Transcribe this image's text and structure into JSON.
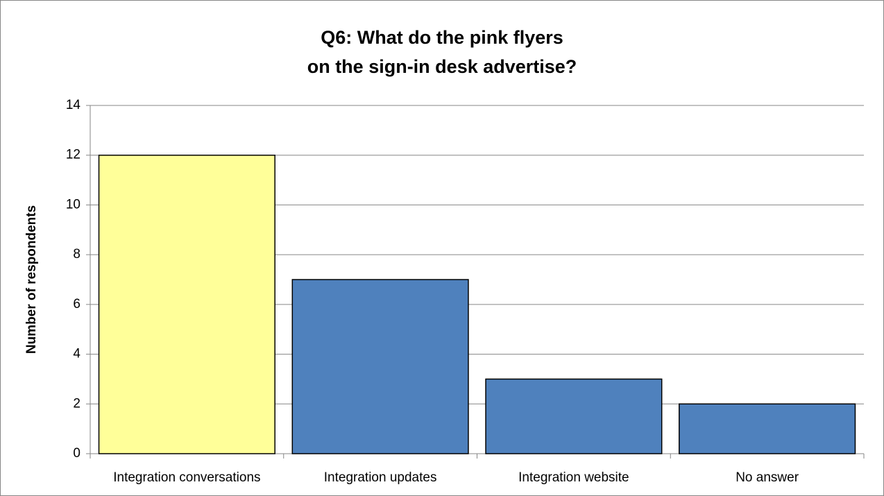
{
  "chart_data": {
    "type": "bar",
    "title": [
      "Q6: What do the pink flyers",
      "on the sign-in desk advertise?"
    ],
    "ylabel": "Number of respondents",
    "categories": [
      "Integration conversations",
      "Integration updates",
      "Integration website",
      "No answer"
    ],
    "values": [
      12,
      7,
      3,
      2
    ],
    "colors": [
      "#ffff99",
      "#4f81bd",
      "#4f81bd",
      "#4f81bd"
    ],
    "ylim": [
      0,
      14
    ],
    "yticks": [
      0,
      2,
      4,
      6,
      8,
      10,
      12,
      14
    ],
    "grid": true
  }
}
